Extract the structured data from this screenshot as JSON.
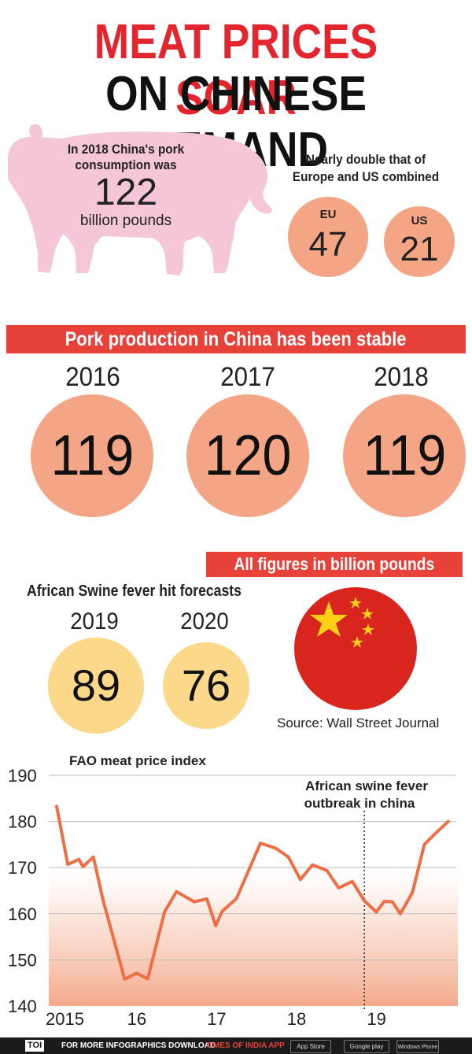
{
  "title_line1": "MEAT PRICES SOAR",
  "title_line2": "ON CHINESE DEMAND",
  "pig": {
    "line1": "In 2018 China's pork",
    "line2": "consumption was",
    "value": "122",
    "unit": "billion pounds"
  },
  "comparison": {
    "line1": "Nearly double that of",
    "line2": "Europe and US combined",
    "eu_label": "EU",
    "eu_value": "47",
    "us_label": "US",
    "us_value": "21"
  },
  "production_banner": "Pork production in China has been stable",
  "production": [
    {
      "year": "2016",
      "value": "119"
    },
    {
      "year": "2017",
      "value": "120"
    },
    {
      "year": "2018",
      "value": "119"
    }
  ],
  "units_banner": "All figures in billion pounds",
  "forecast": {
    "heading": "African Swine fever hit forecasts",
    "items": [
      {
        "year": "2019",
        "value": "89"
      },
      {
        "year": "2020",
        "value": "76"
      }
    ]
  },
  "source": "Source: Wall Street Journal",
  "chart_data": {
    "type": "line",
    "title": "FAO meat price index",
    "annotation_line1": "African swine fever",
    "annotation_line2": "outbreak in china",
    "annotation_x": 2018.85,
    "xlabel": "",
    "ylabel": "",
    "ylim": [
      140,
      190
    ],
    "xlim": [
      2015,
      2020
    ],
    "yticks": [
      140,
      150,
      160,
      170,
      180,
      190
    ],
    "ytick_labels": [
      "140",
      "150",
      "160",
      "170",
      "180",
      "190"
    ],
    "xticks": [
      2015,
      2016,
      2017,
      2018,
      2019
    ],
    "xtick_labels": [
      "2015",
      "16",
      "17",
      "18",
      "19"
    ],
    "grid": true,
    "color": "#ec6f45",
    "series": [
      {
        "x": [
          2015.0,
          2015.14,
          2015.28,
          2015.33,
          2015.46,
          2015.58,
          2015.72,
          2015.85,
          2016.0,
          2016.14,
          2016.26,
          2016.35,
          2016.5,
          2016.72,
          2016.88,
          2016.99,
          2017.07,
          2017.25,
          2017.55,
          2017.74,
          2017.9,
          2018.05,
          2018.2,
          2018.38,
          2018.53,
          2018.7,
          2018.85,
          2019.0,
          2019.1,
          2019.2,
          2019.3,
          2019.45,
          2019.6,
          2019.72,
          2019.9
        ],
        "y": [
          183.3,
          170.7,
          171.8,
          170.2,
          172.3,
          163.0,
          154.1,
          145.8,
          147.1,
          145.9,
          154.2,
          160.4,
          164.8,
          162.6,
          163.2,
          157.4,
          160.5,
          163.3,
          175.3,
          174.2,
          172.3,
          167.4,
          170.6,
          169.4,
          165.6,
          167.0,
          162.8,
          160.4,
          162.7,
          162.6,
          160.0,
          164.5,
          175.0,
          177.1,
          180.0
        ]
      }
    ]
  },
  "footer": {
    "brand": "TOI",
    "text": "FOR MORE  INFOGRAPHICS DOWNLOAD",
    "app": "TIMES OF INDIA APP",
    "app_store": "App Store",
    "google_play": "Google play",
    "windows": "Windows Phone"
  }
}
